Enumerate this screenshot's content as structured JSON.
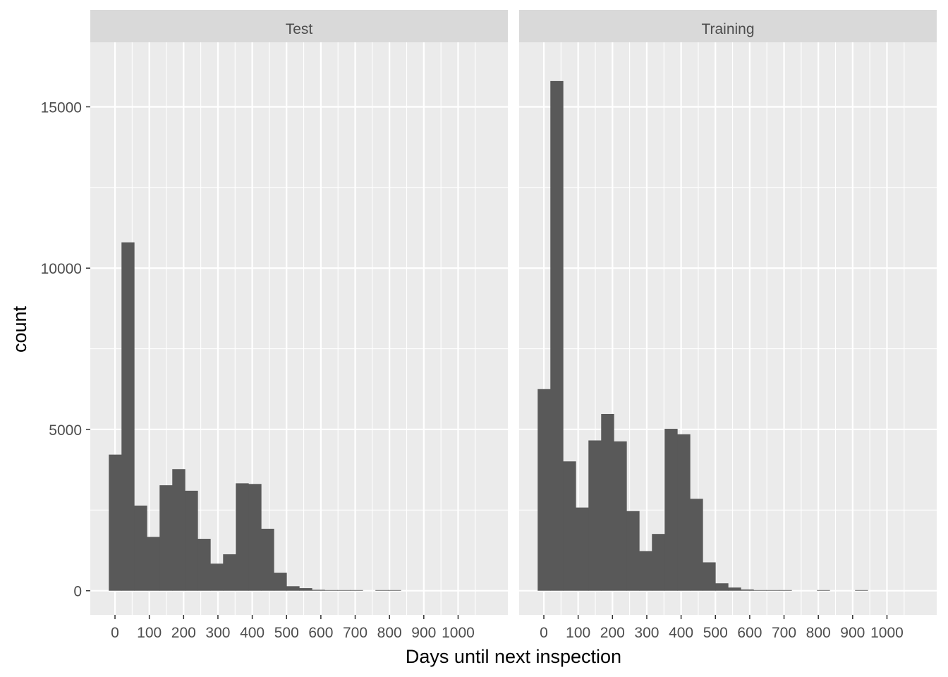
{
  "chart_data": {
    "type": "bar",
    "layout": "faceted histogram",
    "xlabel": "Days until next inspection",
    "ylabel": "count",
    "xlim": [
      -72,
      1145
    ],
    "ylim": [
      -750,
      17000
    ],
    "x_ticks": [
      0,
      100,
      200,
      300,
      400,
      500,
      600,
      700,
      800,
      900,
      1000
    ],
    "x_tick_labels": [
      "0",
      "100",
      "200",
      "300",
      "400",
      "500",
      "600",
      "700",
      "800",
      "900",
      "1000"
    ],
    "y_ticks": [
      0,
      5000,
      10000,
      15000
    ],
    "y_tick_labels": [
      "0",
      "5000",
      "10000",
      "15000"
    ],
    "bin_width": 37,
    "bin_start": -18,
    "grid": true,
    "bar_color": "#595959",
    "panel_background": "#ebebeb",
    "strip_background": "#d9d9d9",
    "facets": [
      {
        "name": "Test",
        "counts": [
          4220,
          10800,
          2640,
          1670,
          3270,
          3770,
          3100,
          1610,
          840,
          1130,
          3330,
          3310,
          1920,
          560,
          140,
          80,
          30,
          20,
          20,
          20,
          0,
          20,
          20,
          0,
          0,
          0,
          0,
          0,
          0,
          0
        ]
      },
      {
        "name": "Training",
        "counts": [
          6250,
          15800,
          4010,
          2580,
          4660,
          5480,
          4630,
          2470,
          1230,
          1760,
          5020,
          4850,
          2850,
          880,
          230,
          100,
          40,
          20,
          20,
          20,
          0,
          0,
          20,
          0,
          0,
          20,
          0,
          0,
          0,
          0
        ]
      }
    ]
  }
}
